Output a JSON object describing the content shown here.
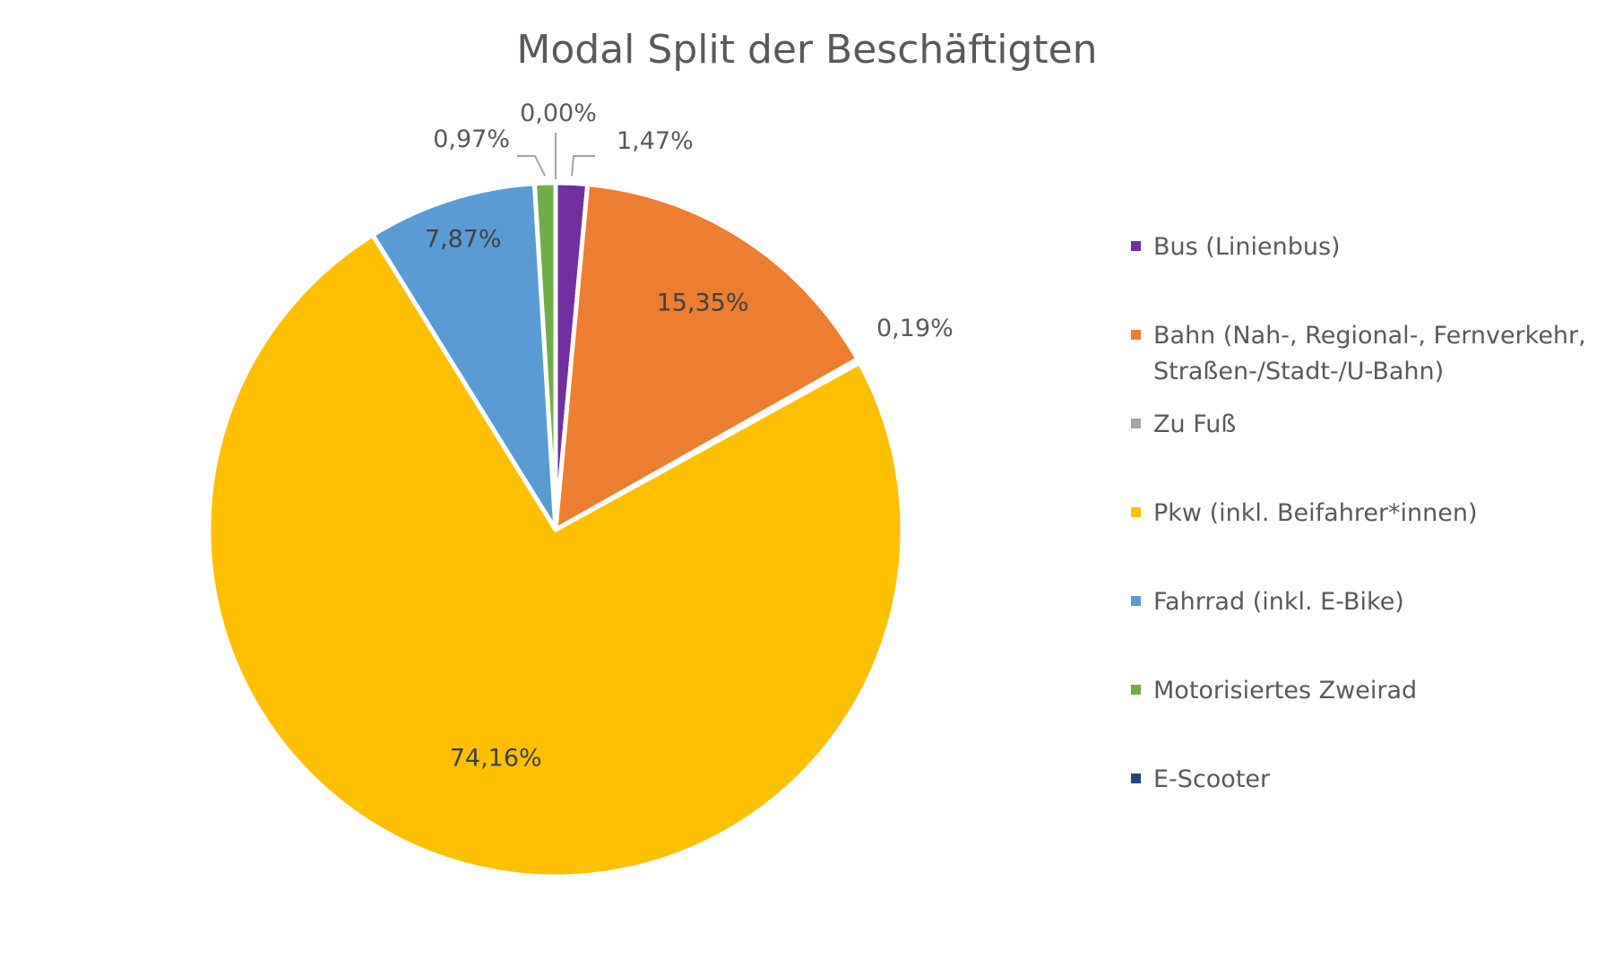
{
  "chart_data": {
    "type": "pie",
    "title": "Modal Split der Beschäftigten",
    "legend_position": "right",
    "slices": [
      {
        "label": "Bus (Linienbus)",
        "value": 1.47,
        "value_label": "1,47%",
        "color": "#7030A0"
      },
      {
        "label": "Bahn (Nah-, Regional-, Fernverkehr, Straßen-/Stadt-/U-Bahn)",
        "value": 15.35,
        "value_label": "15,35%",
        "color": "#ED7D31"
      },
      {
        "label": "Zu Fuß",
        "value": 0.19,
        "value_label": "0,19%",
        "color": "#A5A5A5"
      },
      {
        "label": "Pkw (inkl. Beifahrer*innen)",
        "value": 74.16,
        "value_label": "74,16%",
        "color": "#FFC000"
      },
      {
        "label": "Fahrrad (inkl. E-Bike)",
        "value": 7.87,
        "value_label": "7,87%",
        "color": "#5B9BD5"
      },
      {
        "label": "Motorisiertes Zweirad",
        "value": 0.97,
        "value_label": "0,97%",
        "color": "#70AD47"
      },
      {
        "label": "E-Scooter",
        "value": 0.0,
        "value_label": "0,00%",
        "color": "#264478"
      }
    ]
  }
}
